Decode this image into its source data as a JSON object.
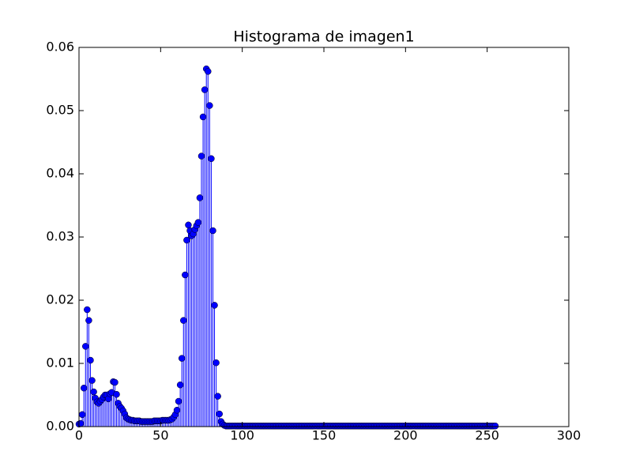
{
  "chart_data": {
    "type": "stem",
    "title": "Histograma de imagen1",
    "color": "#0000ff",
    "xlim": [
      0,
      300
    ],
    "xticks": [
      0,
      50,
      100,
      150,
      200,
      250,
      300
    ],
    "ylim": [
      0,
      0.06
    ],
    "yticks": [
      {
        "value": 0,
        "label": "0.00"
      },
      {
        "value": 0.01,
        "label": "0.01"
      },
      {
        "value": 0.02,
        "label": "0.02"
      },
      {
        "value": 0.03,
        "label": "0.03"
      },
      {
        "value": 0.04,
        "label": "0.04"
      },
      {
        "value": 0.05,
        "label": "0.05"
      },
      {
        "value": 0.06,
        "label": "0.06"
      }
    ],
    "x": [
      0,
      1,
      2,
      3,
      4,
      5,
      6,
      7,
      8,
      9,
      10,
      11,
      12,
      13,
      14,
      15,
      16,
      17,
      18,
      19,
      20,
      21,
      22,
      23,
      24,
      25,
      26,
      27,
      28,
      29,
      30,
      31,
      32,
      33,
      34,
      35,
      36,
      37,
      38,
      39,
      40,
      41,
      42,
      43,
      44,
      45,
      46,
      47,
      48,
      49,
      50,
      51,
      52,
      53,
      54,
      55,
      56,
      57,
      58,
      59,
      60,
      61,
      62,
      63,
      64,
      65,
      66,
      67,
      68,
      69,
      70,
      71,
      72,
      73,
      74,
      75,
      76,
      77,
      78,
      79,
      80,
      81,
      82,
      83,
      84,
      85,
      86,
      87,
      88,
      89,
      90,
      91,
      92,
      93,
      94,
      95,
      96,
      97,
      98,
      99,
      100,
      101,
      102,
      103,
      104,
      105,
      106,
      107,
      108,
      109,
      110,
      111,
      112,
      113,
      114,
      115,
      116,
      117,
      118,
      119,
      120,
      121,
      122,
      123,
      124,
      125,
      126,
      127,
      128,
      129,
      130,
      131,
      132,
      133,
      134,
      135,
      136,
      137,
      138,
      139,
      140,
      141,
      142,
      143,
      144,
      145,
      146,
      147,
      148,
      149,
      150,
      151,
      152,
      153,
      154,
      155,
      156,
      157,
      158,
      159,
      160,
      161,
      162,
      163,
      164,
      165,
      166,
      167,
      168,
      169,
      170,
      171,
      172,
      173,
      174,
      175,
      176,
      177,
      178,
      179,
      180,
      181,
      182,
      183,
      184,
      185,
      186,
      187,
      188,
      189,
      190,
      191,
      192,
      193,
      194,
      195,
      196,
      197,
      198,
      199,
      200,
      201,
      202,
      203,
      204,
      205,
      206,
      207,
      208,
      209,
      210,
      211,
      212,
      213,
      214,
      215,
      216,
      217,
      218,
      219,
      220,
      221,
      222,
      223,
      224,
      225,
      226,
      227,
      228,
      229,
      230,
      231,
      232,
      233,
      234,
      235,
      236,
      237,
      238,
      239,
      240,
      241,
      242,
      243,
      244,
      245,
      246,
      247,
      248,
      249,
      250,
      251,
      252,
      253,
      254,
      255
    ],
    "values": [
      0.0004,
      0.0005,
      0.0019,
      0.0061,
      0.0127,
      0.0185,
      0.0168,
      0.0105,
      0.0073,
      0.0055,
      0.0045,
      0.0039,
      0.0037,
      0.004,
      0.0043,
      0.0047,
      0.005,
      0.005,
      0.0044,
      0.0052,
      0.0054,
      0.0071,
      0.007,
      0.0051,
      0.0037,
      0.0032,
      0.0029,
      0.0025,
      0.002,
      0.0014,
      0.0012,
      0.0011,
      0.001,
      0.001,
      0.0009,
      0.0009,
      0.0009,
      0.0009,
      0.0008,
      0.0008,
      0.0008,
      0.0008,
      0.0008,
      0.0008,
      0.0008,
      0.0008,
      0.0009,
      0.0009,
      0.0009,
      0.0009,
      0.0009,
      0.001,
      0.001,
      0.001,
      0.001,
      0.001,
      0.0011,
      0.0012,
      0.0015,
      0.0019,
      0.0026,
      0.004,
      0.0066,
      0.0108,
      0.0168,
      0.024,
      0.0295,
      0.0319,
      0.031,
      0.0302,
      0.0305,
      0.0312,
      0.0318,
      0.0323,
      0.0362,
      0.0428,
      0.049,
      0.0533,
      0.0566,
      0.0562,
      0.0508,
      0.0424,
      0.031,
      0.0192,
      0.0101,
      0.0048,
      0.002,
      0.0008,
      0.0004,
      0.0002,
      0.0001,
      0.0001,
      0.0001,
      0.0001,
      0.0001,
      0.0001,
      0.0001,
      0.0001,
      0.0001,
      0.0001,
      0.0001,
      0.0001,
      0.0001,
      0.0001,
      0.0001,
      0.0001,
      0.0001,
      0.0001,
      0.0001,
      0.0001,
      0.0001,
      0.0001,
      0.0001,
      0.0001,
      0.0001,
      0.0001,
      0.0001,
      0.0001,
      0.0001,
      0.0001,
      0.0001,
      0.0001,
      0.0001,
      0.0001,
      0.0001,
      0.0001,
      0.0001,
      0.0001,
      0.0001,
      0.0001,
      0.0001,
      0.0001,
      0.0001,
      0.0001,
      0.0001,
      0.0001,
      0.0001,
      0.0001,
      0.0001,
      0.0001,
      0.0001,
      0.0001,
      0.0001,
      0.0001,
      0.0001,
      0.0001,
      0.0001,
      0.0001,
      0.0001,
      0.0001,
      0.0001,
      0.0001,
      0.0001,
      0.0001,
      0.0001,
      0.0001,
      0.0001,
      0.0001,
      0.0001,
      0.0001,
      0.0001,
      0.0001,
      0.0001,
      0.0001,
      0.0001,
      0.0001,
      0.0001,
      0.0001,
      0.0001,
      0.0001,
      0.0001,
      0.0001,
      0.0001,
      0.0001,
      0.0001,
      0.0001,
      0.0001,
      0.0001,
      0.0001,
      0.0001,
      0.0001,
      0.0001,
      0.0001,
      0.0001,
      0.0001,
      0.0001,
      0.0001,
      0.0001,
      0.0001,
      0.0001,
      0.0001,
      0.0001,
      0.0001,
      0.0001,
      0.0001,
      0.0001,
      0.0001,
      0.0001,
      0.0001,
      0.0001,
      0.0001,
      0.0001,
      0.0001,
      0.0001,
      0.0001,
      0.0001,
      0.0001,
      0.0001,
      0.0001,
      0.0001,
      0.0001,
      0.0001,
      0.0001,
      0.0001,
      0.0001,
      0.0001,
      0.0001,
      0.0001,
      0.0001,
      0.0001,
      0.0001,
      0.0001,
      0.0001,
      0.0001,
      0.0001,
      0.0001,
      0.0001,
      0.0001,
      0.0001,
      0.0001,
      0.0001,
      0.0001,
      0.0001,
      0.0001,
      0.0001,
      0.0001,
      0.0001,
      0.0001,
      0.0001,
      0.0001,
      0.0001,
      0.0001,
      0.0001,
      0.0001,
      0.0001,
      0.0001,
      0.0001,
      0.0001,
      0.0001,
      0.0001,
      0.0001,
      0.0001,
      0.0001,
      0.0001,
      0.0001,
      0.0001
    ]
  }
}
